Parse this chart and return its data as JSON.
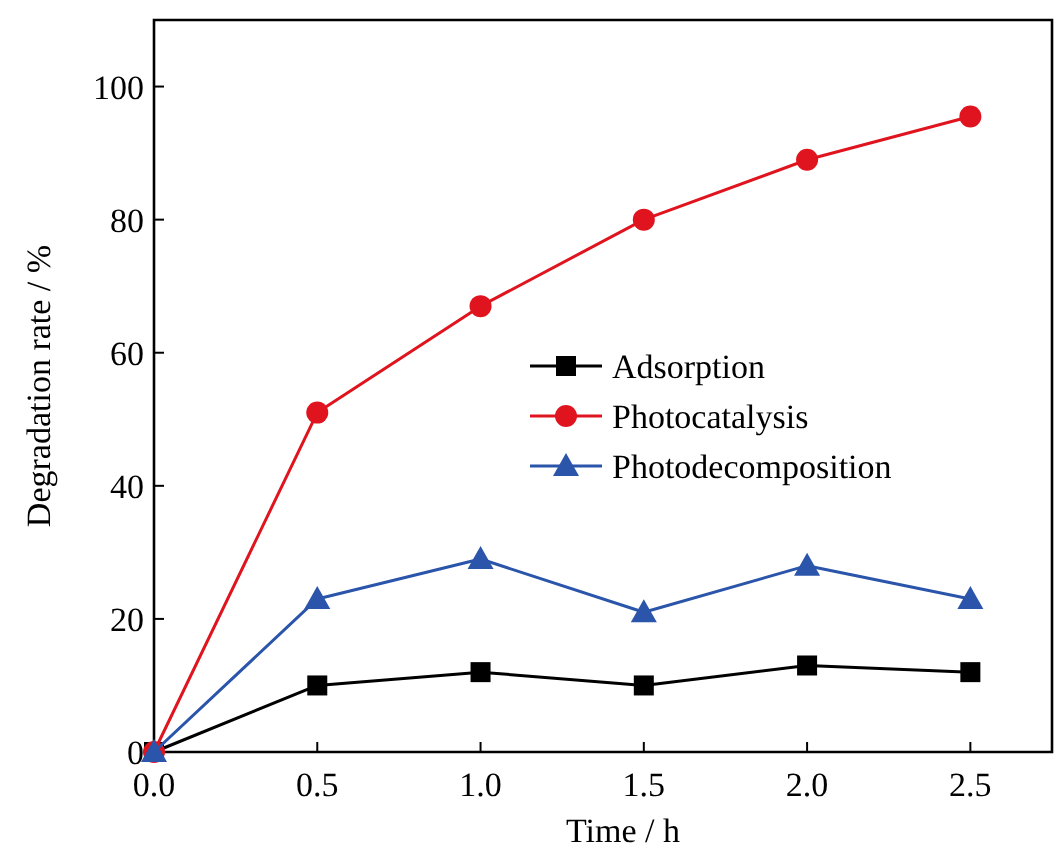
{
  "chart_data": {
    "type": "line",
    "xlabel": "Time / h",
    "ylabel": "Degradation rate / %",
    "x": [
      0,
      0.5,
      1,
      1.5,
      2,
      2.5
    ],
    "xlim": [
      0,
      2.75
    ],
    "xticks": [
      {
        "value": 0,
        "label": "0.0"
      },
      {
        "value": 0.5,
        "label": "0.5"
      },
      {
        "value": 1,
        "label": "1.0"
      },
      {
        "value": 1.5,
        "label": "1.5"
      },
      {
        "value": 2,
        "label": "2.0"
      },
      {
        "value": 2.5,
        "label": "2.5"
      }
    ],
    "ylim": [
      0,
      110
    ],
    "yticks": [
      0,
      20,
      40,
      60,
      80,
      100
    ],
    "legend": "center right",
    "grid": false,
    "series": [
      {
        "name": "Adsorption",
        "color": "#000000",
        "marker": "square",
        "values": [
          0,
          10,
          12,
          10,
          13,
          12
        ]
      },
      {
        "name": "Photocatalysis",
        "color": "#e0141e",
        "marker": "circle",
        "values": [
          0,
          51,
          67,
          80,
          89,
          95.5
        ]
      },
      {
        "name": "Photodecomposition",
        "color": "#2a55aa",
        "marker": "triangle",
        "values": [
          0,
          23,
          29,
          21,
          28,
          23
        ]
      }
    ]
  }
}
